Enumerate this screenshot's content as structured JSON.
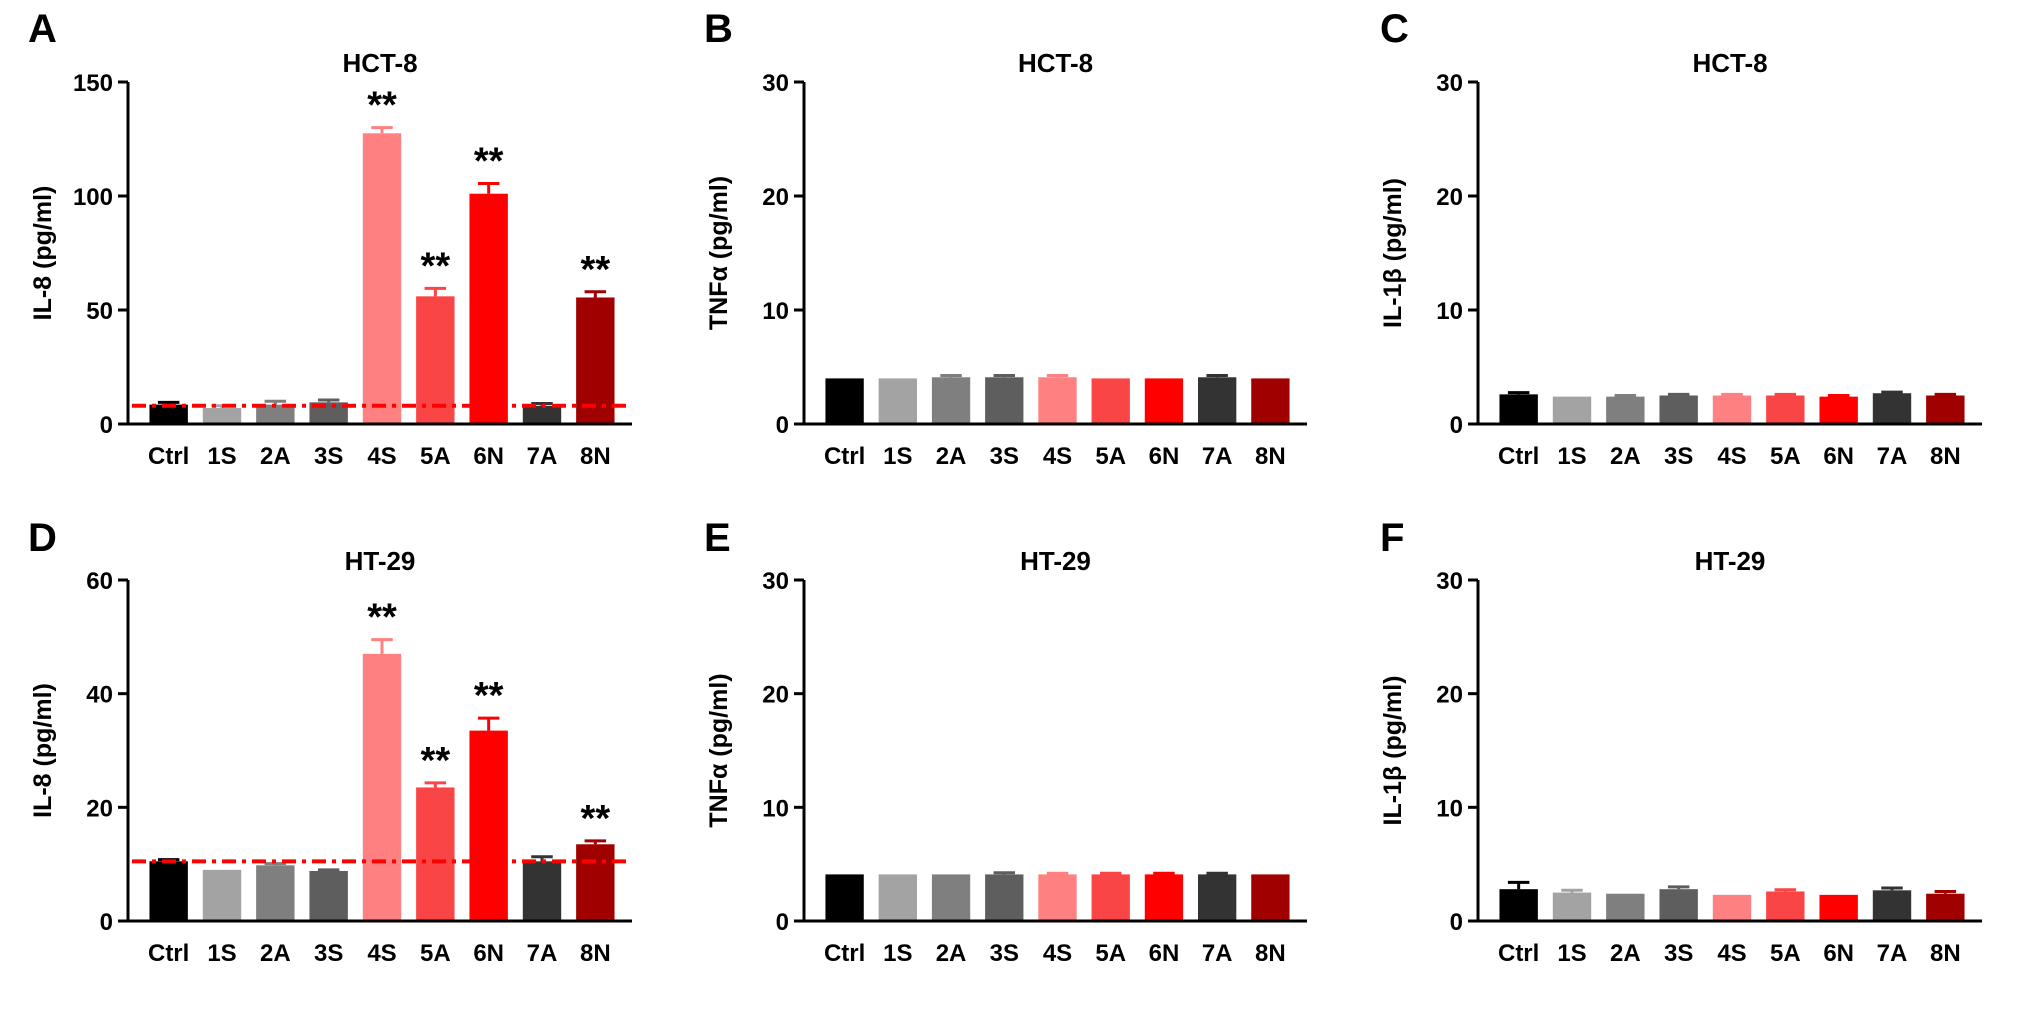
{
  "categories": [
    "Ctrl",
    "1S",
    "2A",
    "3S",
    "4S",
    "5A",
    "6N",
    "7A",
    "8N"
  ],
  "colors": [
    "#000000",
    "#a3a3a3",
    "#7f7f7f",
    "#5e5e5e",
    "#ff8080",
    "#f94545",
    "#ff0000",
    "#333333",
    "#a00000"
  ],
  "reference_color": "#ff0000",
  "chart_data": [
    {
      "type": "bar",
      "panel": "A",
      "title": "HCT-8",
      "ylabel": "IL-8 (pg/ml)",
      "ylim": [
        0,
        150
      ],
      "yticks": [
        0,
        50,
        100,
        150
      ],
      "values": [
        8.5,
        7,
        8.5,
        9.5,
        127.5,
        56,
        101,
        8,
        55.5
      ],
      "errors": [
        1,
        1,
        1.5,
        1,
        2.5,
        3.5,
        4.5,
        1,
        2.5
      ],
      "significance": [
        "",
        "",
        "",
        "",
        "**",
        "**",
        "**",
        "",
        "**"
      ],
      "reference_line": 8
    },
    {
      "type": "bar",
      "panel": "B",
      "title": "HCT-8",
      "ylabel": "TNFα (pg/ml)",
      "ylim": [
        0,
        30
      ],
      "yticks": [
        0,
        10,
        20,
        30
      ],
      "values": [
        4,
        4,
        4.1,
        4.1,
        4.1,
        4,
        4,
        4.1,
        4
      ],
      "errors": [
        0,
        0,
        0.15,
        0.15,
        0.15,
        0,
        0,
        0.15,
        0
      ],
      "significance": [
        "",
        "",
        "",
        "",
        "",
        "",
        "",
        "",
        ""
      ]
    },
    {
      "type": "bar",
      "panel": "C",
      "title": "HCT-8",
      "ylabel": "IL-1β (pg/ml)",
      "ylim": [
        0,
        30
      ],
      "yticks": [
        0,
        10,
        20,
        30
      ],
      "values": [
        2.6,
        2.4,
        2.4,
        2.5,
        2.5,
        2.5,
        2.4,
        2.7,
        2.5
      ],
      "errors": [
        0.15,
        0,
        0.1,
        0.1,
        0.1,
        0.1,
        0.1,
        0.1,
        0.1
      ],
      "significance": [
        "",
        "",
        "",
        "",
        "",
        "",
        "",
        "",
        ""
      ]
    },
    {
      "type": "bar",
      "panel": "D",
      "title": "HT-29",
      "ylabel": "IL-8 (pg/ml)",
      "ylim": [
        0,
        60
      ],
      "yticks": [
        0,
        20,
        40,
        60
      ],
      "values": [
        10.5,
        9,
        9.8,
        8.8,
        47,
        23.5,
        33.5,
        10.5,
        13.5
      ],
      "errors": [
        0.3,
        0,
        0.3,
        0.2,
        2.5,
        0.8,
        2.2,
        0.8,
        0.6
      ],
      "significance": [
        "",
        "",
        "",
        "",
        "**",
        "**",
        "**",
        "",
        "**"
      ],
      "reference_line": 10.5
    },
    {
      "type": "bar",
      "panel": "E",
      "title": "HT-29",
      "ylabel": "TNFα (pg/ml)",
      "ylim": [
        0,
        30
      ],
      "yticks": [
        0,
        10,
        20,
        30
      ],
      "values": [
        4.1,
        4.1,
        4.1,
        4.1,
        4.1,
        4.1,
        4.1,
        4.1,
        4.1
      ],
      "errors": [
        0,
        0,
        0,
        0.15,
        0.1,
        0.1,
        0.1,
        0.1,
        0
      ],
      "significance": [
        "",
        "",
        "",
        "",
        "",
        "",
        "",
        "",
        ""
      ]
    },
    {
      "type": "bar",
      "panel": "F",
      "title": "HT-29",
      "ylabel": "IL-1β (pg/ml)",
      "ylim": [
        0,
        30
      ],
      "yticks": [
        0,
        10,
        20,
        30
      ],
      "values": [
        2.8,
        2.5,
        2.4,
        2.8,
        2.3,
        2.6,
        2.3,
        2.7,
        2.4
      ],
      "errors": [
        0.6,
        0.2,
        0,
        0.2,
        0,
        0.15,
        0,
        0.2,
        0.2
      ],
      "significance": [
        "",
        "",
        "",
        "",
        "",
        "",
        "",
        "",
        ""
      ]
    }
  ]
}
